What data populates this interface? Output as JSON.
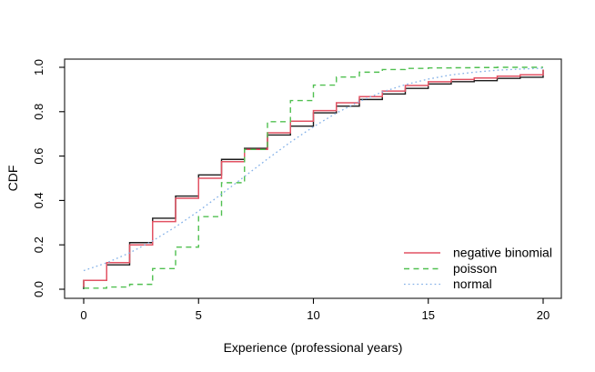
{
  "figure": {
    "background": "#ffffff",
    "plot_border_color": "#2a2a2a",
    "text_color": "#000000"
  },
  "chart_data": {
    "type": "line",
    "title": "",
    "xlabel": "Experience (professional years)",
    "ylabel": "CDF",
    "xlim": [
      0,
      20
    ],
    "ylim": [
      0.0,
      1.0
    ],
    "x_ticks": [
      "0",
      "5",
      "10",
      "15",
      "20"
    ],
    "x_tick_values": [
      0,
      5,
      10,
      15,
      20
    ],
    "y_ticks": [
      "0.0",
      "0.2",
      "0.4",
      "0.6",
      "0.8",
      "1.0"
    ],
    "y_tick_values": [
      0.0,
      0.2,
      0.4,
      0.6,
      0.8,
      1.0
    ],
    "grid": false,
    "legend_position": "bottom-right",
    "x": [
      0,
      1,
      2,
      3,
      4,
      5,
      6,
      7,
      8,
      9,
      10,
      11,
      12,
      13,
      14,
      15,
      16,
      17,
      18,
      19,
      20
    ],
    "series": [
      {
        "name": "empirical-cdf",
        "legend_label": null,
        "line_type": "step",
        "dash": "solid",
        "color": "#1c1c1c",
        "width": 1.4,
        "rise_from": 0.0,
        "values": [
          0.04,
          0.11,
          0.21,
          0.32,
          0.42,
          0.515,
          0.585,
          0.635,
          0.695,
          0.735,
          0.795,
          0.825,
          0.855,
          0.88,
          0.905,
          0.925,
          0.935,
          0.94,
          0.95,
          0.955,
          0.99
        ]
      },
      {
        "name": "negative-binomial",
        "legend_label": "negative binomial",
        "line_type": "step",
        "dash": "solid",
        "color": "#e25263",
        "width": 1.5,
        "rise_from": 0.01,
        "values": [
          0.04,
          0.12,
          0.2,
          0.305,
          0.41,
          0.5,
          0.575,
          0.63,
          0.705,
          0.757,
          0.805,
          0.84,
          0.868,
          0.893,
          0.918,
          0.935,
          0.945,
          0.952,
          0.96,
          0.966,
          0.99
        ]
      },
      {
        "name": "poisson",
        "legend_label": "poisson",
        "line_type": "step",
        "dash": "dashed",
        "color": "#50c050",
        "width": 1.4,
        "rise_from": null,
        "values": [
          0.005,
          0.01,
          0.022,
          0.093,
          0.19,
          0.327,
          0.48,
          0.63,
          0.755,
          0.85,
          0.92,
          0.956,
          0.978,
          0.99,
          0.995,
          0.997,
          0.998,
          0.999,
          1.0,
          1.0,
          1.0
        ]
      },
      {
        "name": "normal",
        "legend_label": "normal",
        "line_type": "line",
        "dash": "dotted",
        "color": "#84b1e8",
        "width": 1.3,
        "rise_from": null,
        "values": [
          0.084,
          0.119,
          0.164,
          0.218,
          0.281,
          0.352,
          0.429,
          0.508,
          0.587,
          0.663,
          0.732,
          0.794,
          0.846,
          0.889,
          0.922,
          0.947,
          0.966,
          0.978,
          0.987,
          0.992,
          0.996
        ]
      }
    ]
  }
}
